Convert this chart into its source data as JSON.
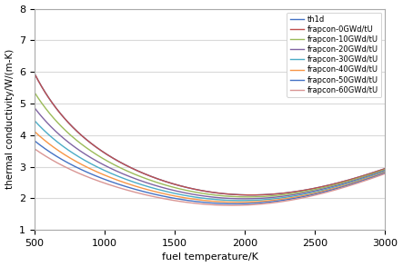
{
  "title": "",
  "xlabel": "fuel temperature/K",
  "ylabel": "thermal conductivity/W/(m·K)",
  "xlim": [
    500,
    3000
  ],
  "ylim": [
    1,
    8
  ],
  "yticks": [
    1,
    2,
    3,
    4,
    5,
    6,
    7,
    8
  ],
  "xticks": [
    500,
    1000,
    1500,
    2000,
    2500,
    3000
  ],
  "series": [
    {
      "label": "th1d",
      "color": "#4472C4",
      "burnup": 0,
      "type": "th1d"
    },
    {
      "label": "frapcon-0GWd/tU",
      "color": "#C0504D",
      "burnup": 0,
      "type": "frapcon"
    },
    {
      "label": "frapcon-10GWd/tU",
      "color": "#9BBB59",
      "burnup": 10,
      "type": "frapcon"
    },
    {
      "label": "frapcon-20GWd/tU",
      "color": "#8064A2",
      "burnup": 20,
      "type": "frapcon"
    },
    {
      "label": "frapcon-30GWd/tU",
      "color": "#4BACC6",
      "burnup": 30,
      "type": "frapcon"
    },
    {
      "label": "frapcon-40GWd/tU",
      "color": "#F79646",
      "burnup": 40,
      "type": "frapcon"
    },
    {
      "label": "frapcon-50GWd/tU",
      "color": "#4472C4",
      "burnup": 50,
      "type": "frapcon"
    },
    {
      "label": "frapcon-60GWd/tU",
      "color": "#D99694",
      "burnup": 60,
      "type": "frapcon"
    }
  ],
  "background_color": "#FFFFFF",
  "grid_color": "#D9D9D9",
  "figsize": [
    4.43,
    2.94
  ],
  "dpi": 100,
  "ylabel_label": "thermal conductivity/W/(m-K)"
}
